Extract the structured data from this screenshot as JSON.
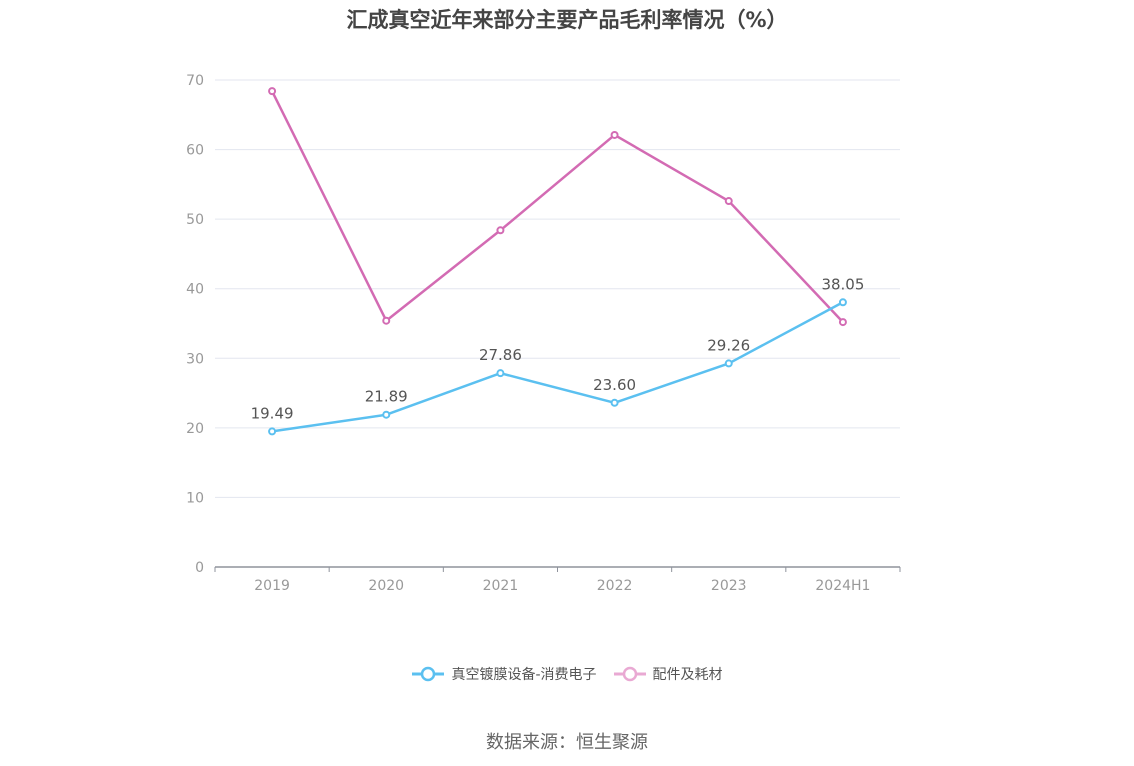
{
  "chart_data": {
    "type": "line",
    "title": "汇成真空近年来部分主要产品毛利率情况（%）",
    "categories": [
      "2019",
      "2020",
      "2021",
      "2022",
      "2023",
      "2024H1"
    ],
    "ylim": [
      0,
      70
    ],
    "yticks": [
      0,
      10,
      20,
      30,
      40,
      50,
      60,
      70
    ],
    "grid": true,
    "legend_position": "bottom",
    "series": [
      {
        "name": "真空镀膜设备-消费电子",
        "color": "#5bc0f0",
        "values": [
          19.49,
          21.89,
          27.86,
          23.6,
          29.26,
          38.05
        ],
        "labels": [
          "19.49",
          "21.89",
          "27.86",
          "23.60",
          "29.26",
          "38.05"
        ],
        "show_labels": true
      },
      {
        "name": "配件及耗材",
        "color": "#d36bb3",
        "values": [
          68.4,
          35.4,
          48.4,
          62.1,
          52.6,
          35.2
        ],
        "show_labels": false
      }
    ]
  },
  "legend_colors": [
    "#5bc0f0",
    "#e9a9d3"
  ],
  "source": "数据来源：恒生聚源"
}
